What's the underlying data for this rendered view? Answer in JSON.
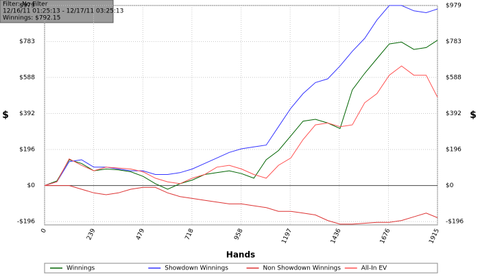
{
  "chart_data": {
    "type": "line",
    "annotations": [
      "Filter: No Filter",
      "12/16/11 01:25:13 - 12/17/11 03:25:13",
      "Winnings: $792.15"
    ],
    "x_label": "Hands",
    "y_label": "$",
    "x": [
      0,
      60,
      120,
      180,
      240,
      300,
      360,
      420,
      480,
      540,
      600,
      660,
      720,
      780,
      840,
      900,
      960,
      1020,
      1080,
      1140,
      1200,
      1260,
      1320,
      1380,
      1440,
      1500,
      1560,
      1620,
      1680,
      1740,
      1800,
      1860,
      1915
    ],
    "series": [
      {
        "name": "Winnings",
        "color": "#006400",
        "values": [
          0,
          25,
          140,
          120,
          80,
          90,
          85,
          75,
          50,
          10,
          -20,
          10,
          30,
          60,
          70,
          80,
          65,
          40,
          140,
          190,
          270,
          350,
          360,
          340,
          310,
          520,
          610,
          690,
          770,
          780,
          740,
          750,
          790
        ]
      },
      {
        "name": "Showdown Winnings",
        "color": "#3333ff",
        "values": [
          0,
          20,
          130,
          140,
          100,
          100,
          90,
          80,
          80,
          60,
          60,
          70,
          90,
          120,
          150,
          180,
          200,
          210,
          220,
          320,
          420,
          500,
          560,
          580,
          650,
          730,
          800,
          900,
          979,
          979,
          950,
          940,
          960
        ]
      },
      {
        "name": "Non Showdown Winnings",
        "color": "#dd3333",
        "values": [
          0,
          0,
          0,
          -20,
          -40,
          -50,
          -40,
          -20,
          -10,
          -10,
          -40,
          -60,
          -70,
          -80,
          -90,
          -100,
          -100,
          -110,
          -120,
          -140,
          -140,
          -150,
          -160,
          -190,
          -210,
          -210,
          -205,
          -200,
          -200,
          -190,
          -170,
          -150,
          -175
        ]
      },
      {
        "name": "All-In EV",
        "color": "#ff5050",
        "values": [
          0,
          20,
          145,
          110,
          80,
          100,
          95,
          90,
          75,
          40,
          20,
          10,
          40,
          60,
          100,
          110,
          90,
          60,
          40,
          110,
          150,
          250,
          330,
          340,
          320,
          330,
          450,
          500,
          600,
          650,
          600,
          600,
          480
        ]
      }
    ],
    "xlim": [
      0,
      1915
    ],
    "xticks": [
      0,
      239,
      479,
      718,
      958,
      1197,
      1436,
      1676,
      1915
    ],
    "ylim": [
      -214,
      979
    ],
    "yticks": [
      {
        "value": -196,
        "label": "-$196"
      },
      {
        "value": 0,
        "label": "$0"
      },
      {
        "value": 196,
        "label": "$196"
      },
      {
        "value": 392,
        "label": "$392"
      },
      {
        "value": 588,
        "label": "$588"
      },
      {
        "value": 783,
        "label": "$783"
      },
      {
        "value": 979,
        "label": "$979"
      }
    ],
    "grid": true,
    "legend": "bottom"
  }
}
